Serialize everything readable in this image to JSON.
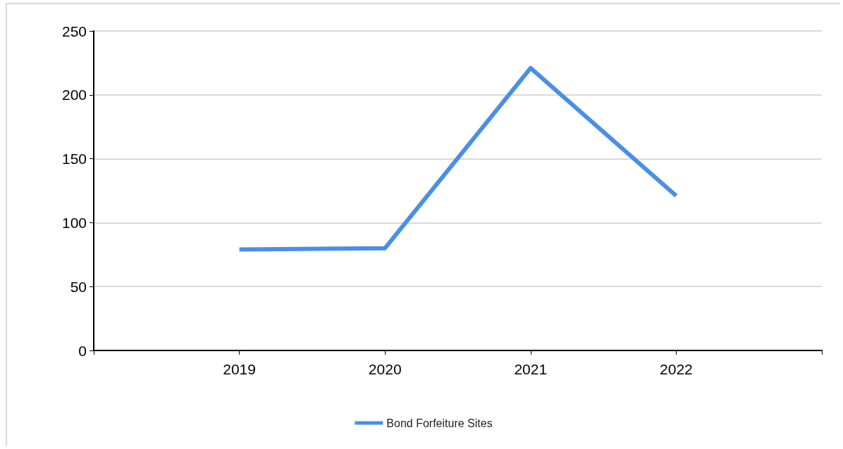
{
  "chart_data": {
    "type": "line",
    "x": [
      2019,
      2020,
      2021,
      2022
    ],
    "series": [
      {
        "name": "Bond Forfeiture Sites",
        "color": "#4a8fe7",
        "values": [
          79,
          80,
          221,
          121
        ]
      }
    ],
    "xlim": [
      2018,
      2023
    ],
    "xticks": [
      {
        "value": 2018,
        "label": null
      },
      2019,
      2020,
      2021,
      2022,
      {
        "value": 2023,
        "label": null
      }
    ],
    "ylim": [
      0,
      250
    ],
    "yticks": [
      0,
      50,
      100,
      150,
      200,
      250
    ],
    "grid": "y",
    "legend": "bottom",
    "marker": "none",
    "line_style": "solid"
  }
}
